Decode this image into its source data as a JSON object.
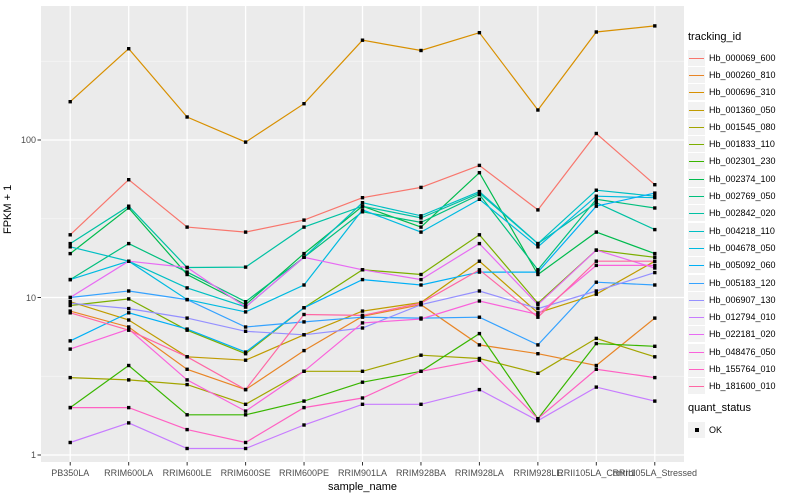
{
  "chart_data": {
    "type": "line",
    "title": "",
    "xlabel": "sample_name",
    "ylabel": "FPKM + 1",
    "y_scale": "log10",
    "y_ticks": [
      1,
      10,
      100
    ],
    "ylim": [
      1,
      700
    ],
    "grid": "on",
    "legend_position": "right",
    "panel_background": "#EBEBEB",
    "grid_color": "#FFFFFF",
    "marker_color": "#000000",
    "categories": [
      "PB350LA",
      "RRIM600LA",
      "RRIM600LE",
      "RRIM600SE",
      "RRIM600PE",
      "RRIM901LA",
      "RRIM928BA",
      "RRIM928LA",
      "RRIM928LE",
      "RRII105LA_Control",
      "RRII105LA_Stressed"
    ],
    "series": [
      {
        "name": "Hb_000069_600",
        "color": "#F8766D",
        "values": [
          25,
          56,
          28,
          26,
          31,
          43,
          50,
          69,
          36,
          110,
          52
        ]
      },
      {
        "name": "Hb_000260_810",
        "color": "#E88526",
        "values": [
          8.2,
          6.5,
          3.5,
          2.6,
          4.6,
          7.6,
          9.0,
          5.0,
          4.4,
          3.7,
          7.4
        ]
      },
      {
        "name": "Hb_000696_310",
        "color": "#D89000",
        "values": [
          175,
          380,
          140,
          97,
          170,
          430,
          370,
          480,
          155,
          485,
          530
        ]
      },
      {
        "name": "Hb_001360_050",
        "color": "#C09B00",
        "values": [
          9.4,
          7.2,
          4.2,
          4.0,
          5.8,
          8.2,
          9.3,
          17,
          8.0,
          10.5,
          17
        ]
      },
      {
        "name": "Hb_001545_080",
        "color": "#A3A500",
        "values": [
          3.1,
          3.0,
          2.8,
          2.1,
          3.4,
          3.4,
          4.3,
          4.1,
          3.3,
          5.5,
          4.2
        ]
      },
      {
        "name": "Hb_001833_110",
        "color": "#7CAE00",
        "values": [
          8.9,
          9.8,
          6.2,
          4.4,
          8.6,
          15,
          14,
          25,
          9.2,
          20,
          18
        ]
      },
      {
        "name": "Hb_002301_230",
        "color": "#39B600",
        "values": [
          2.0,
          3.7,
          1.8,
          1.8,
          2.2,
          2.9,
          3.4,
          5.9,
          1.7,
          5.1,
          4.9
        ]
      },
      {
        "name": "Hb_002374_100",
        "color": "#00BB4E",
        "values": [
          19,
          37,
          14,
          9.0,
          19,
          38,
          28,
          62,
          14,
          26,
          19
        ]
      },
      {
        "name": "Hb_002769_050",
        "color": "#00BF7D",
        "values": [
          13,
          22,
          14.5,
          9.4,
          18,
          35,
          30,
          45,
          15,
          42,
          37
        ]
      },
      {
        "name": "Hb_002842_020",
        "color": "#00C1A3",
        "values": [
          22,
          38,
          15.5,
          15.6,
          28,
          38,
          32,
          46,
          22,
          40,
          27
        ]
      },
      {
        "name": "Hb_004218_110",
        "color": "#00BFC4",
        "values": [
          21,
          17,
          11.5,
          8.7,
          18,
          40,
          33,
          47,
          22,
          48,
          44
        ]
      },
      {
        "name": "Hb_004678_050",
        "color": "#00BAE0",
        "values": [
          13,
          17,
          9.7,
          8.1,
          12,
          36,
          26,
          42,
          21,
          44,
          43
        ]
      },
      {
        "name": "Hb_005092_060",
        "color": "#00B0F6",
        "values": [
          5.3,
          8.0,
          6.3,
          4.5,
          8.6,
          13,
          12,
          14.5,
          14.5,
          38,
          46
        ]
      },
      {
        "name": "Hb_005183_120",
        "color": "#35A2FF",
        "values": [
          10,
          11,
          9.7,
          6.5,
          7.0,
          7.5,
          7.4,
          7.5,
          5.0,
          12.5,
          12
        ]
      },
      {
        "name": "Hb_006907_130",
        "color": "#9590FF",
        "values": [
          9.2,
          8.5,
          7.4,
          6.1,
          5.8,
          6.4,
          9.0,
          11,
          8.5,
          11,
          14.4
        ]
      },
      {
        "name": "Hb_012794_010",
        "color": "#C77CFF",
        "values": [
          1.2,
          1.6,
          1.1,
          1.1,
          1.55,
          2.1,
          2.1,
          2.6,
          1.65,
          2.7,
          2.2
        ]
      },
      {
        "name": "Hb_022181_020",
        "color": "#E76BF3",
        "values": [
          10,
          17,
          15.5,
          8.7,
          18,
          15,
          13,
          22,
          9.0,
          20,
          15.4
        ]
      },
      {
        "name": "Hb_048476_050",
        "color": "#FA62DB",
        "values": [
          4.7,
          6.3,
          3.0,
          1.9,
          3.4,
          6.9,
          7.3,
          9.5,
          7.8,
          16,
          16
        ]
      },
      {
        "name": "Hb_155764_010",
        "color": "#FF61C3",
        "values": [
          2.0,
          2.0,
          1.45,
          1.2,
          2.0,
          2.3,
          3.4,
          4.0,
          1.7,
          3.5,
          3.1
        ]
      },
      {
        "name": "Hb_181600_010",
        "color": "#FF67A4",
        "values": [
          8.0,
          6.2,
          4.2,
          2.6,
          7.8,
          7.7,
          9.2,
          15,
          7.5,
          17,
          17
        ]
      }
    ]
  },
  "legend": {
    "tracking_title": "tracking_id",
    "quant_title": "quant_status",
    "quant_value": "OK"
  }
}
